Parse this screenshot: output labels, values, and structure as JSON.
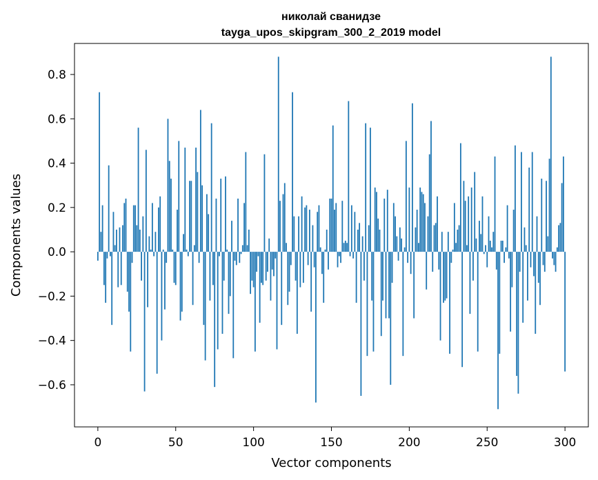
{
  "chart_data": {
    "type": "bar",
    "title": [
      "николай сванидзе",
      "tayga_upos_skipgram_300_2_2019 model"
    ],
    "xlabel": "Vector components",
    "ylabel": "Components values",
    "xlim": [
      -15,
      315
    ],
    "ylim": [
      -0.79,
      0.94
    ],
    "xticks": [
      0,
      50,
      100,
      150,
      200,
      250,
      300
    ],
    "yticks": [
      -0.6,
      -0.4,
      -0.2,
      0.0,
      0.2,
      0.4,
      0.6,
      0.8
    ],
    "ytick_labels": [
      "−0.6",
      "−0.4",
      "−0.2",
      "0.0",
      "0.2",
      "0.4",
      "0.6",
      "0.8"
    ],
    "bar_color": "#1f77b4",
    "grid": false,
    "x_start": 0,
    "values": [
      -0.04,
      0.72,
      0.09,
      0.21,
      -0.15,
      -0.23,
      -0.03,
      0.39,
      -0.02,
      -0.33,
      0.18,
      0.03,
      0.1,
      -0.16,
      0.11,
      -0.15,
      0.12,
      0.22,
      0.24,
      -0.18,
      -0.27,
      -0.45,
      -0.05,
      0.21,
      0.21,
      0.12,
      0.56,
      0.1,
      -0.13,
      0.16,
      -0.63,
      0.46,
      -0.25,
      0.07,
      0.01,
      0.22,
      -0.02,
      0.09,
      -0.55,
      0.2,
      0.25,
      -0.4,
      0.01,
      -0.26,
      -0.05,
      0.6,
      0.41,
      0.33,
      0.01,
      -0.14,
      -0.15,
      0.19,
      0.5,
      -0.31,
      -0.27,
      0.08,
      0.47,
      0.01,
      -0.02,
      0.32,
      0.32,
      -0.24,
      0.03,
      0.47,
      0.36,
      -0.05,
      0.64,
      0.3,
      -0.33,
      -0.49,
      0.26,
      0.17,
      -0.22,
      0.58,
      -0.15,
      -0.61,
      0.24,
      -0.44,
      -0.02,
      0.33,
      -0.37,
      -0.13,
      0.34,
      0.01,
      -0.28,
      -0.2,
      0.14,
      -0.48,
      -0.04,
      -0.06,
      0.24,
      -0.05,
      -0.01,
      0.03,
      0.22,
      0.45,
      0.03,
      0.1,
      -0.19,
      -0.13,
      -0.16,
      -0.45,
      -0.09,
      -0.02,
      -0.32,
      -0.14,
      -0.15,
      0.44,
      -0.13,
      -0.09,
      0.06,
      -0.22,
      -0.08,
      -0.11,
      -0.03,
      -0.44,
      0.88,
      0.23,
      -0.33,
      0.26,
      0.31,
      0.04,
      -0.24,
      -0.18,
      -0.06,
      0.72,
      0.16,
      -0.13,
      -0.37,
      0.16,
      -0.16,
      0.25,
      -0.14,
      0.2,
      0.21,
      -0.06,
      0.19,
      -0.27,
      0.12,
      -0.07,
      -0.68,
      0.18,
      0.21,
      0.02,
      -0.1,
      -0.23,
      0.01,
      0.1,
      -0.08,
      0.24,
      0.24,
      0.57,
      0.19,
      0.22,
      -0.07,
      -0.02,
      -0.05,
      0.23,
      0.04,
      0.05,
      0.04,
      0.68,
      -0.02,
      0.21,
      -0.03,
      0.18,
      -0.23,
      0.1,
      0.13,
      -0.65,
      0.07,
      -0.13,
      0.58,
      -0.47,
      0.12,
      0.56,
      -0.22,
      -0.45,
      0.29,
      0.27,
      0.15,
      0.1,
      -0.38,
      -0.22,
      0.24,
      -0.3,
      0.28,
      -0.3,
      -0.6,
      -0.14,
      0.22,
      0.16,
      0.07,
      -0.04,
      0.11,
      0.06,
      -0.47,
      0.02,
      0.5,
      -0.05,
      0.29,
      -0.1,
      0.67,
      -0.3,
      0.11,
      0.19,
      0.04,
      0.29,
      0.27,
      0.26,
      0.22,
      -0.17,
      0.16,
      0.44,
      0.59,
      -0.09,
      0.12,
      0.13,
      0.25,
      -0.08,
      -0.4,
      0.09,
      -0.23,
      -0.22,
      -0.21,
      0.09,
      -0.46,
      -0.05,
      0.01,
      0.22,
      0.04,
      0.1,
      0.12,
      0.49,
      -0.52,
      0.32,
      0.23,
      0.03,
      0.25,
      -0.28,
      0.29,
      -0.13,
      0.36,
      0.06,
      -0.45,
      0.14,
      0.08,
      0.25,
      -0.01,
      0.03,
      -0.07,
      0.16,
      0.05,
      0.02,
      0.09,
      0.43,
      -0.08,
      -0.71,
      -0.46,
      0.05,
      0.05,
      -0.05,
      0.02,
      0.21,
      -0.03,
      -0.36,
      -0.16,
      0.19,
      0.48,
      -0.56,
      -0.64,
      -0.09,
      0.45,
      -0.32,
      0.11,
      0.03,
      -0.22,
      0.38,
      -0.07,
      0.45,
      -0.11,
      -0.37,
      0.16,
      -0.14,
      -0.24,
      0.33,
      -0.06,
      -0.09,
      0.32,
      0.07,
      0.42,
      0.88,
      -0.03,
      -0.06,
      -0.09,
      0.02,
      0.12,
      0.13,
      0.31,
      0.43,
      -0.54
    ]
  }
}
